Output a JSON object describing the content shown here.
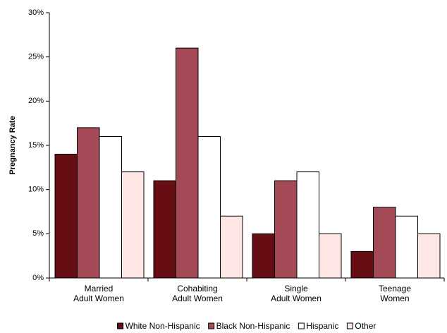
{
  "chart_data": {
    "type": "bar",
    "y_label": "Pregnancy Rate",
    "categories": [
      [
        "Married",
        "Adult Women"
      ],
      [
        "Cohabiting",
        "Adult Women"
      ],
      [
        "Single",
        "Adult Women"
      ],
      [
        "Teenage",
        "Women"
      ]
    ],
    "series": [
      {
        "name": "White Non-Hispanic",
        "color": "#660e13",
        "values": [
          14,
          11,
          5,
          3
        ]
      },
      {
        "name": "Black Non-Hispanic",
        "color": "#a34a56",
        "values": [
          17,
          26,
          11,
          8
        ]
      },
      {
        "name": "Hispanic",
        "color": "#ffffff",
        "values": [
          16,
          16,
          12,
          7
        ]
      },
      {
        "name": "Other",
        "color": "#fde6e4",
        "values": [
          12,
          7,
          5,
          5
        ]
      }
    ],
    "ylim": [
      0,
      30
    ],
    "yticks": [
      {
        "value": 0,
        "label": "0%"
      },
      {
        "value": 5,
        "label": "5%"
      },
      {
        "value": 10,
        "label": "10%"
      },
      {
        "value": 15,
        "label": "15%"
      },
      {
        "value": 20,
        "label": "20%"
      },
      {
        "value": 25,
        "label": "25%"
      },
      {
        "value": 30,
        "label": "30%"
      }
    ],
    "grid": false,
    "legend": "bottom"
  }
}
